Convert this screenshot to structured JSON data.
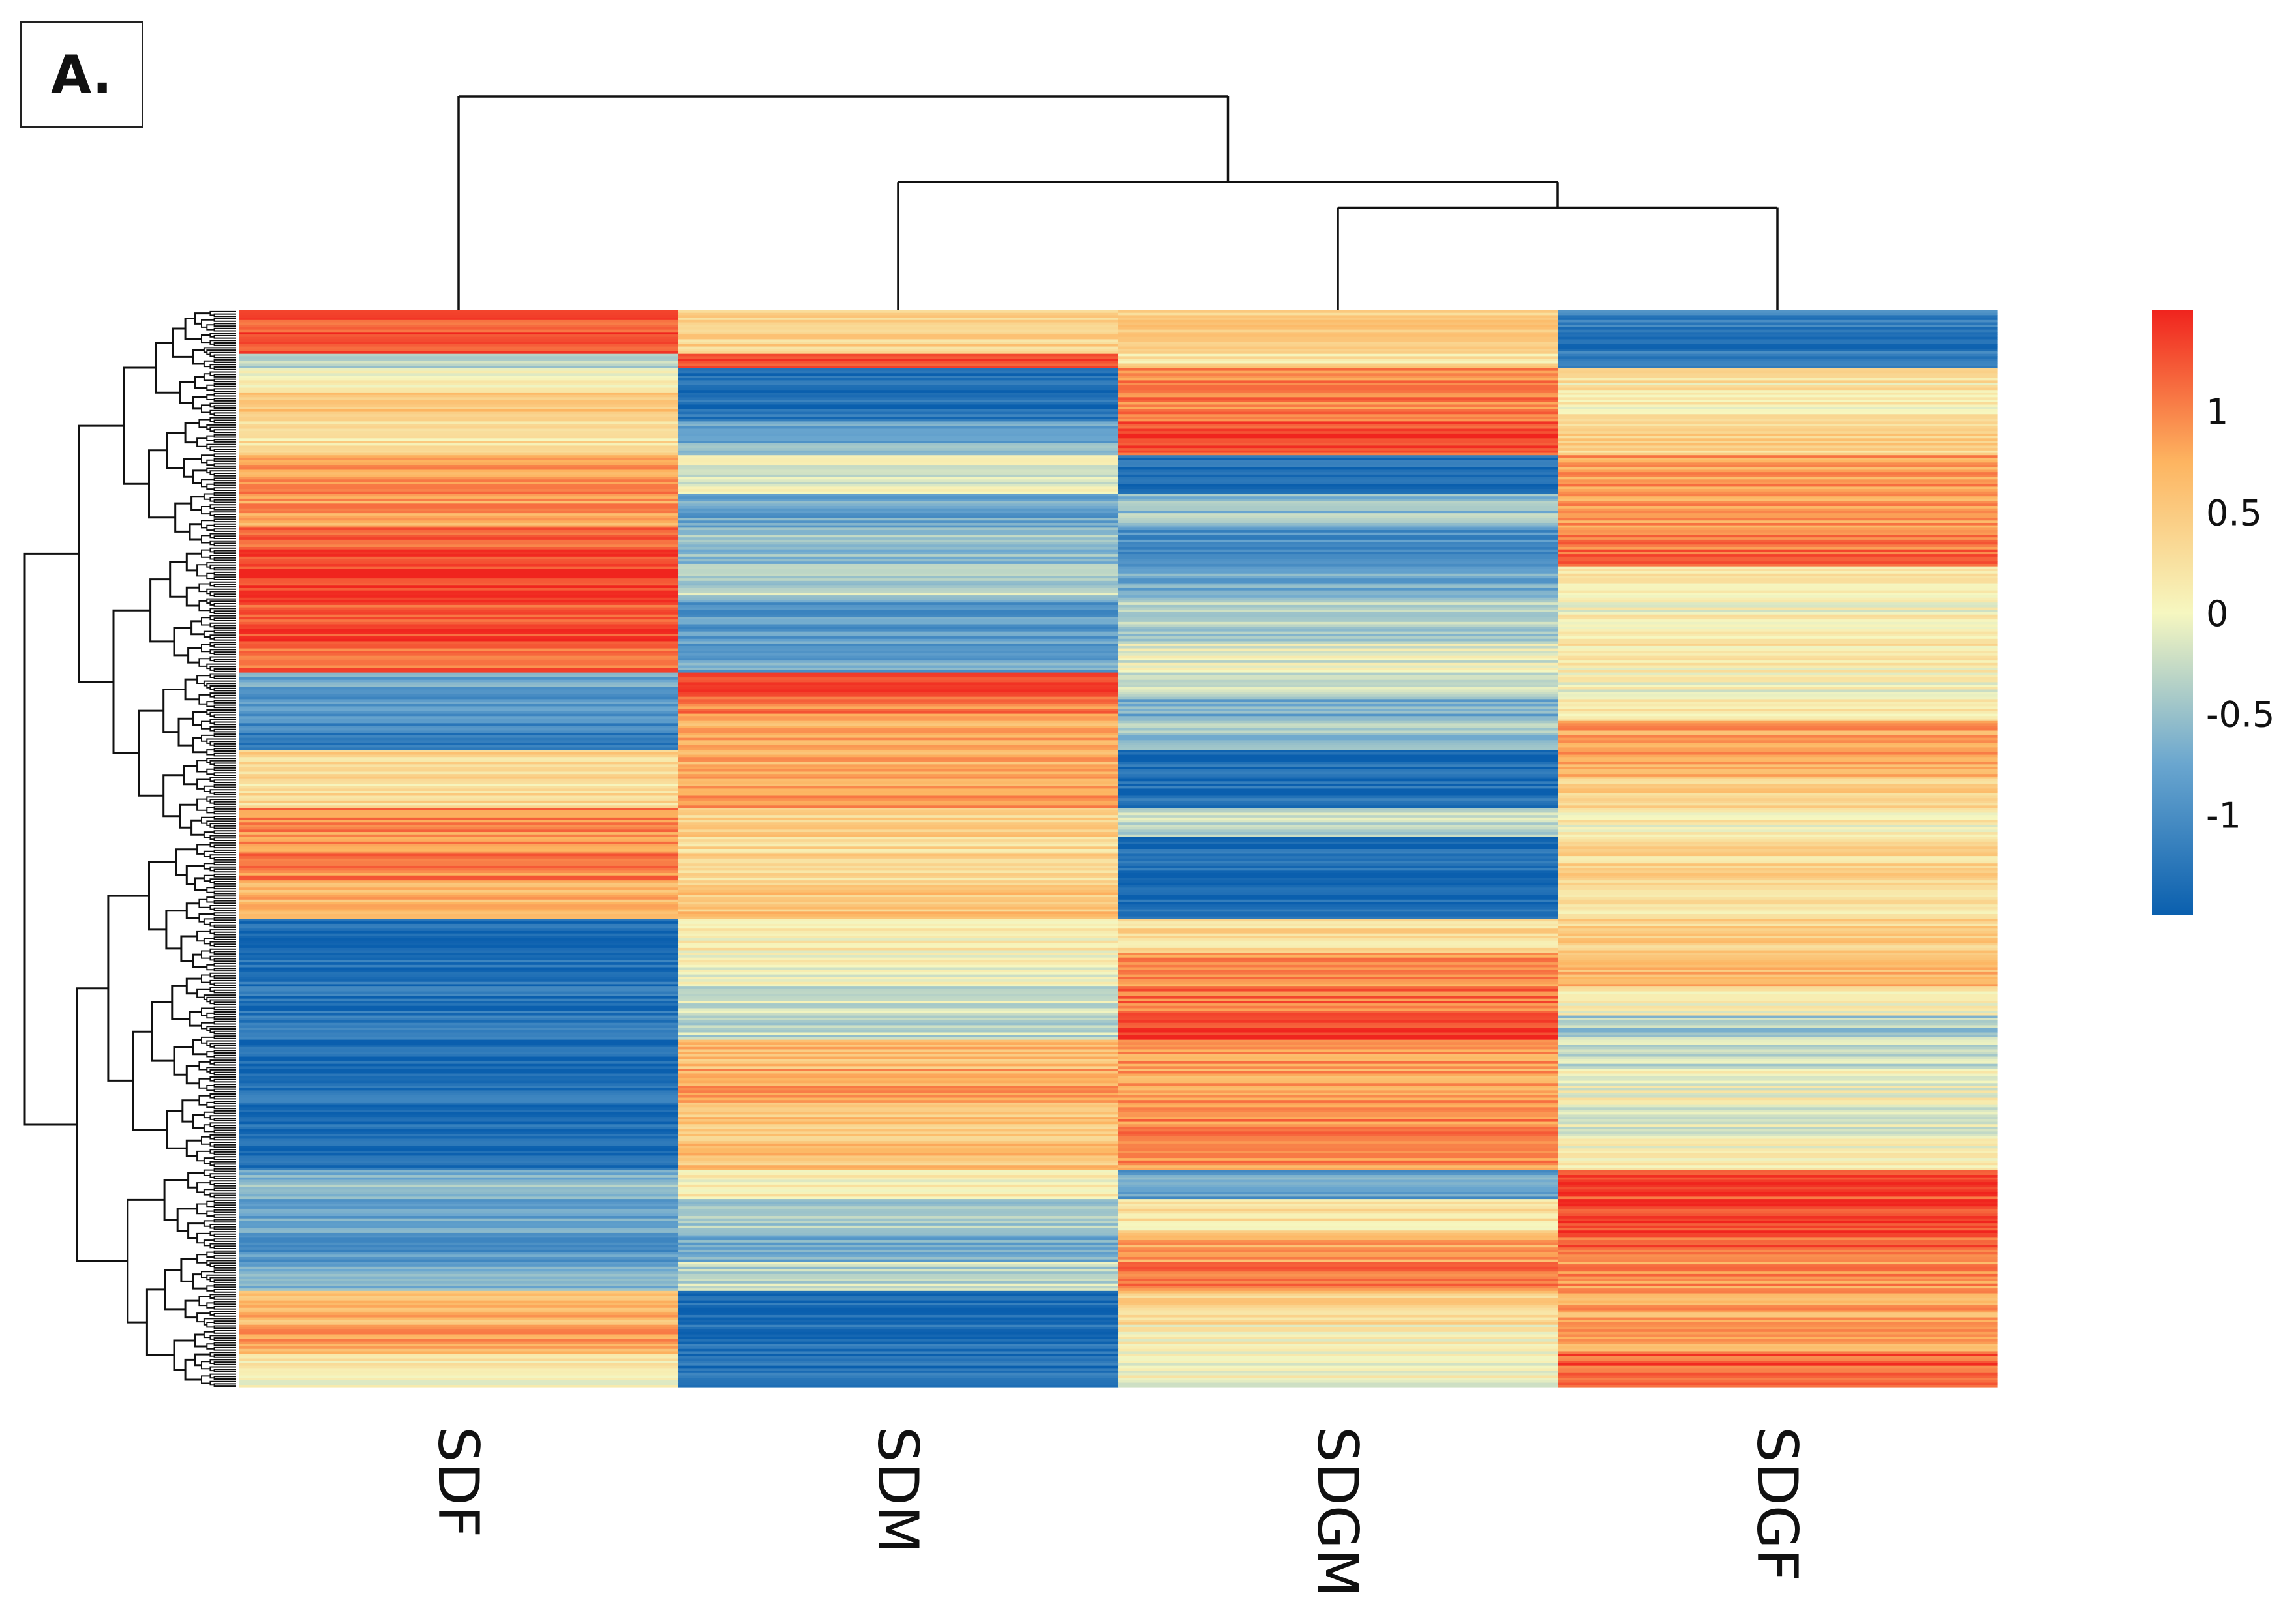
{
  "panel_label": "A.",
  "chart_data": {
    "type": "heatmap",
    "title": "",
    "xlabel": "",
    "ylabel": "",
    "columns": [
      "SDF",
      "SDM",
      "SDGM",
      "SDGF"
    ],
    "column_dendrogram": {
      "merges": [
        {
          "left": "SDGM",
          "right": "SDGF",
          "height": 0.52
        },
        {
          "left": "SDM",
          "right": "SDGM+SDGF",
          "height": 0.55
        },
        {
          "left": "SDF",
          "right": "SDM+SDGM+SDGF",
          "height": 0.65
        }
      ]
    },
    "row_dendrogram": "shown (left side, many rows)",
    "row_blocks": [
      {
        "rows": 18,
        "values": [
          1.25,
          0.4,
          0.45,
          -1.2
        ]
      },
      {
        "rows": 6,
        "values": [
          -0.4,
          1.2,
          0.3,
          -1.2
        ]
      },
      {
        "rows": 10,
        "values": [
          0.1,
          -1.35,
          1.05,
          0.2
        ]
      },
      {
        "rows": 12,
        "values": [
          0.6,
          -1.3,
          1.0,
          0.1
        ]
      },
      {
        "rows": 14,
        "values": [
          0.25,
          -0.7,
          1.3,
          0.4
        ]
      },
      {
        "rows": 16,
        "values": [
          0.9,
          -0.1,
          -1.3,
          0.85
        ]
      },
      {
        "rows": 14,
        "values": [
          0.85,
          -0.8,
          -0.5,
          0.9
        ]
      },
      {
        "rows": 16,
        "values": [
          1.25,
          -0.5,
          -0.95,
          1.1
        ]
      },
      {
        "rows": 14,
        "values": [
          1.35,
          -0.3,
          -0.75,
          0.1
        ]
      },
      {
        "rows": 18,
        "values": [
          1.3,
          -0.85,
          -0.4,
          0.05
        ]
      },
      {
        "rows": 12,
        "values": [
          1.1,
          -0.8,
          -0.1,
          0.15
        ]
      },
      {
        "rows": 10,
        "values": [
          -0.8,
          1.3,
          -0.3,
          0.0
        ]
      },
      {
        "rows": 10,
        "values": [
          -0.95,
          1.0,
          -0.7,
          0.2
        ]
      },
      {
        "rows": 12,
        "values": [
          -1.1,
          0.8,
          -0.5,
          0.85
        ]
      },
      {
        "rows": 12,
        "values": [
          0.4,
          0.75,
          -1.35,
          0.8
        ]
      },
      {
        "rows": 12,
        "values": [
          0.3,
          0.85,
          -1.3,
          0.5
        ]
      },
      {
        "rows": 12,
        "values": [
          0.95,
          0.45,
          -0.3,
          0.1
        ]
      },
      {
        "rows": 18,
        "values": [
          1.0,
          0.35,
          -1.4,
          0.35
        ]
      },
      {
        "rows": 16,
        "values": [
          0.75,
          0.55,
          -1.4,
          0.2
        ]
      },
      {
        "rows": 14,
        "values": [
          -1.4,
          0.1,
          0.35,
          0.45
        ]
      },
      {
        "rows": 14,
        "values": [
          -1.35,
          0.0,
          0.9,
          0.7
        ]
      },
      {
        "rows": 12,
        "values": [
          -1.3,
          -0.2,
          1.1,
          0.1
        ]
      },
      {
        "rows": 10,
        "values": [
          -1.2,
          -0.3,
          1.4,
          -0.4
        ]
      },
      {
        "rows": 12,
        "values": [
          -1.4,
          0.65,
          0.9,
          -0.2
        ]
      },
      {
        "rows": 14,
        "values": [
          -1.35,
          0.8,
          0.85,
          0.0
        ]
      },
      {
        "rows": 14,
        "values": [
          -1.4,
          0.55,
          0.95,
          -0.1
        ]
      },
      {
        "rows": 14,
        "values": [
          -1.4,
          0.6,
          0.9,
          0.1
        ]
      },
      {
        "rows": 12,
        "values": [
          -0.6,
          0.1,
          -0.8,
          1.3
        ]
      },
      {
        "rows": 14,
        "values": [
          -0.8,
          -0.4,
          0.2,
          1.4
        ]
      },
      {
        "rows": 12,
        "values": [
          -0.9,
          -0.7,
          0.8,
          1.2
        ]
      },
      {
        "rows": 12,
        "values": [
          -0.7,
          -0.3,
          1.1,
          0.9
        ]
      },
      {
        "rows": 14,
        "values": [
          0.7,
          -1.4,
          0.4,
          0.8
        ]
      },
      {
        "rows": 12,
        "values": [
          0.8,
          -1.35,
          0.05,
          0.85
        ]
      },
      {
        "rows": 14,
        "values": [
          0.1,
          -1.3,
          0.05,
          1.2
        ]
      }
    ],
    "color_scale": {
      "min": -1.5,
      "max": 1.5,
      "ticks": [
        1,
        0.5,
        0,
        -0.5,
        -1
      ],
      "tick_labels": [
        "1",
        "0.5",
        "0",
        "-0.5",
        "-1"
      ],
      "colors": [
        "#0a5fae",
        "#6aa6cf",
        "#f6f7c0",
        "#fdb460",
        "#f0241e"
      ]
    }
  }
}
